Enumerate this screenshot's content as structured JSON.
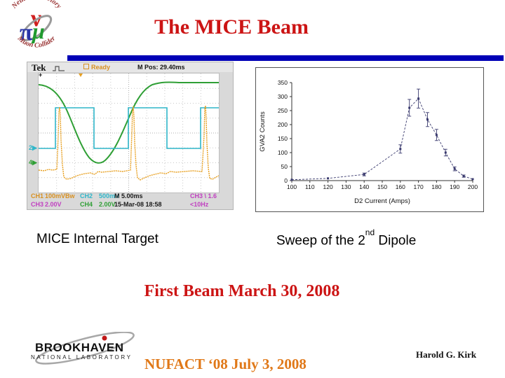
{
  "slide": {
    "title": "The MICE Beam",
    "caption_left": "MICE Internal Target",
    "caption_right": {
      "pre": "Sweep of the 2",
      "sup": "nd",
      "post": " Dipole"
    },
    "highlight": "First Beam March 30, 2008",
    "conference": "NUFACT ‘08 July 3, 2008",
    "author": "Harold G. Kirk"
  },
  "nf_logo": {
    "arc_top": "Neutrino Factory",
    "arc_bottom": "Muon Collider",
    "nu": "ν",
    "pi": "π",
    "mu": "μ"
  },
  "bnl_logo": {
    "name": "BROOKHAVEN",
    "subtitle": "NATIONAL LABORATORY"
  },
  "scope": {
    "brand": "Tek",
    "status": "Ready",
    "m_pos": "M Pos: 29.40ms",
    "marker_ch2": "2",
    "marker_ch4": "4",
    "trigger_plus": "+",
    "readout": {
      "ch1": "CH1",
      "ch1_v": "100mVBw",
      "ch2": "CH2",
      "ch2_v": "500mV",
      "time": "M 5.00ms",
      "trig": "CH3 \\ 1.6",
      "ch3": "CH3",
      "ch3_v": "2.00V",
      "ch4": "CH4",
      "ch4_v": "2.00V",
      "date": "15-Mar-08 18:58",
      "freq": "<10Hz"
    }
  },
  "chart_data": {
    "type": "scatter",
    "title": "",
    "xlabel": "D2 Current (Amps)",
    "ylabel": "GVA2 Counts",
    "x": [
      100,
      120,
      140,
      160,
      165,
      170,
      175,
      180,
      185,
      190,
      195,
      200
    ],
    "y": [
      3,
      8,
      22,
      113,
      260,
      293,
      218,
      163,
      100,
      42,
      16,
      5
    ],
    "yerr": [
      2,
      3,
      5,
      15,
      30,
      34,
      25,
      20,
      12,
      7,
      4,
      2
    ],
    "xlim": [
      100,
      200
    ],
    "ylim": [
      0,
      350
    ],
    "xticks": [
      100,
      110,
      120,
      130,
      140,
      150,
      160,
      170,
      180,
      190,
      200
    ],
    "yticks": [
      0,
      50,
      100,
      150,
      200,
      250,
      300,
      350
    ],
    "line_style": "dashed",
    "marker": "square",
    "series_color": "#3a3a6e",
    "grid": false,
    "legend": "none"
  },
  "colors": {
    "title_red": "#cc1414",
    "rule_blue": "#0000b6",
    "nufact_orange": "#e07818",
    "trace_green": "#2f9f35",
    "trace_cyan": "#2fb6c9",
    "trace_orange": "#e8a020"
  }
}
